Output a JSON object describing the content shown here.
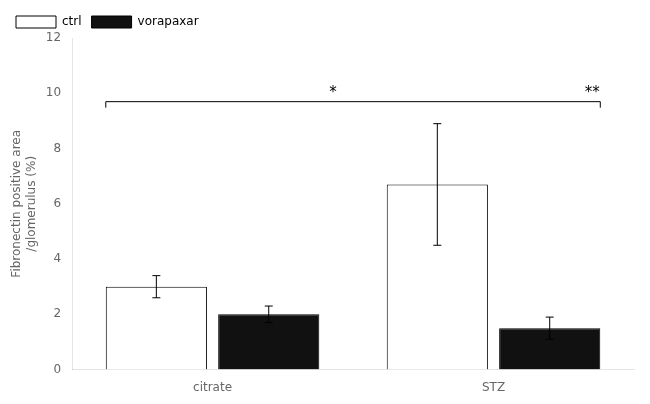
{
  "chart_data": {
    "type": "bar",
    "categories": [
      "citrate",
      "STZ"
    ],
    "series": [
      {
        "name": "ctrl",
        "color": "#ffffff",
        "values": [
          3.0,
          6.7
        ],
        "errors": [
          0.4,
          2.2
        ]
      },
      {
        "name": "vorapaxar",
        "color": "#111111",
        "values": [
          2.0,
          1.5
        ],
        "errors": [
          0.3,
          0.4
        ]
      }
    ],
    "ylabel": "Fibronectin positive area\n/glomerulus (%)",
    "ylim": [
      0,
      12
    ],
    "yticks": [
      0,
      2,
      4,
      6,
      8,
      10,
      12
    ],
    "grid": false,
    "legend": "upper left",
    "annotations": [
      "*",
      "**"
    ]
  }
}
